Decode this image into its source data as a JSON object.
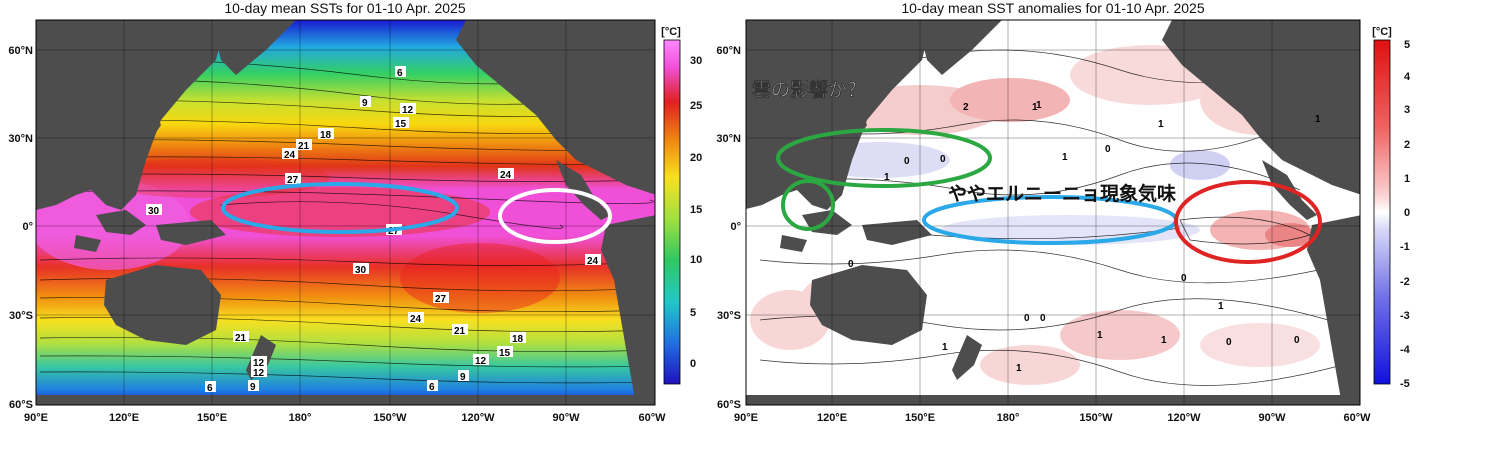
{
  "left_panel": {
    "title": "10-day mean SSTs for 01-10 Apr. 2025",
    "unit": "[°C]",
    "colorbar_ticks": [
      "30",
      "25",
      "20",
      "15",
      "10",
      "5",
      "0"
    ],
    "contour_labels": [
      "6",
      "9",
      "12",
      "15",
      "18",
      "21",
      "24",
      "27",
      "30",
      "27",
      "30",
      "27",
      "24",
      "21",
      "18",
      "15",
      "12",
      "9",
      "6",
      "24",
      "24",
      "21",
      "12",
      "12",
      "9",
      "6"
    ]
  },
  "right_panel": {
    "title": "10-day mean SST anomalies for 01-10 Apr. 2025",
    "unit": "[°C]",
    "colorbar_ticks": [
      "5",
      "4",
      "3",
      "2",
      "1",
      "0",
      "-1",
      "-2",
      "-3",
      "-4",
      "-5"
    ],
    "contour_labels": [
      "2",
      "1",
      "1",
      "0",
      "0",
      "1",
      "1",
      "1",
      "1",
      "0",
      "0",
      "0",
      "0",
      "1",
      "1",
      "0",
      "0",
      "1",
      "1",
      "0",
      "1"
    ],
    "annotations": {
      "cloud_note": "雲の影響か？",
      "el_nino_note": "ややエルニーニョ現象気味"
    }
  },
  "axes": {
    "lat_labels": [
      "60°N",
      "30°N",
      "0°",
      "30°S",
      "60°S"
    ],
    "left_lon_labels": [
      "90°E",
      "120°E",
      "150°E",
      "180°",
      "150°W",
      "120°W",
      "90°W",
      "60°W"
    ],
    "right_lon_labels": [
      "90°E",
      "120°E",
      "150°E",
      "180°",
      "150°W",
      "120°W",
      "90°W",
      "60°W"
    ]
  },
  "colors": {
    "land": "#4d4d4d",
    "cyan_ellipse": "#2aa8e8",
    "white_ellipse": "#ffffff",
    "green_ellipse": "#2ca842",
    "red_ellipse": "#e02424"
  }
}
